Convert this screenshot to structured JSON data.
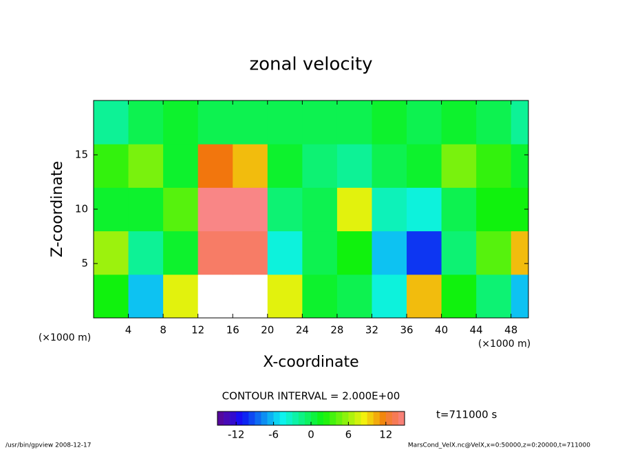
{
  "chart_data": {
    "type": "heatmap",
    "title": "zonal velocity",
    "x_label": "X-coordinate",
    "y_label": "Z-coordinate",
    "x_unit": "(×1000 m)",
    "y_unit": "(×1000 m)",
    "xlim": [
      0,
      50
    ],
    "xticks": [
      4,
      8,
      12,
      16,
      20,
      24,
      28,
      32,
      36,
      40,
      44,
      48
    ],
    "ylim": [
      0,
      20
    ],
    "yticks": [
      5,
      10,
      15
    ],
    "x": [
      2,
      6,
      10,
      14,
      18,
      22,
      26,
      30,
      34,
      38,
      42,
      46,
      50
    ],
    "z": [
      2,
      6,
      10,
      14,
      18
    ],
    "values": [
      [
        2,
        -6,
        8,
        -16,
        -16,
        8,
        1,
        0,
        -4,
        10,
        2,
        -1,
        -6
      ],
      [
        6,
        -2,
        1,
        14,
        14,
        -4,
        0,
        2,
        -6,
        -10,
        -1,
        4,
        10
      ],
      [
        1,
        1,
        4,
        15,
        15,
        -1,
        0,
        8,
        -3,
        -4,
        0,
        2,
        2
      ],
      [
        3,
        5,
        1,
        12,
        10,
        1,
        -1,
        -2,
        0,
        1,
        5,
        3,
        1
      ],
      [
        -2,
        0,
        1,
        0,
        0,
        0,
        0,
        0,
        1,
        0,
        1,
        0,
        -2
      ]
    ],
    "contour_interval": "CONTOUR INTERVAL = 2.000E+00",
    "clim": [
      -15,
      15
    ],
    "cticks": [
      -12,
      -6,
      0,
      6,
      12
    ],
    "time_label": "t=711000 s",
    "footer_left": "/usr/bin/gpview   2008-12-17",
    "footer_right": "MarsCond_VelX.nc@VelX,x=0:50000,z=0:20000,t=711000"
  }
}
